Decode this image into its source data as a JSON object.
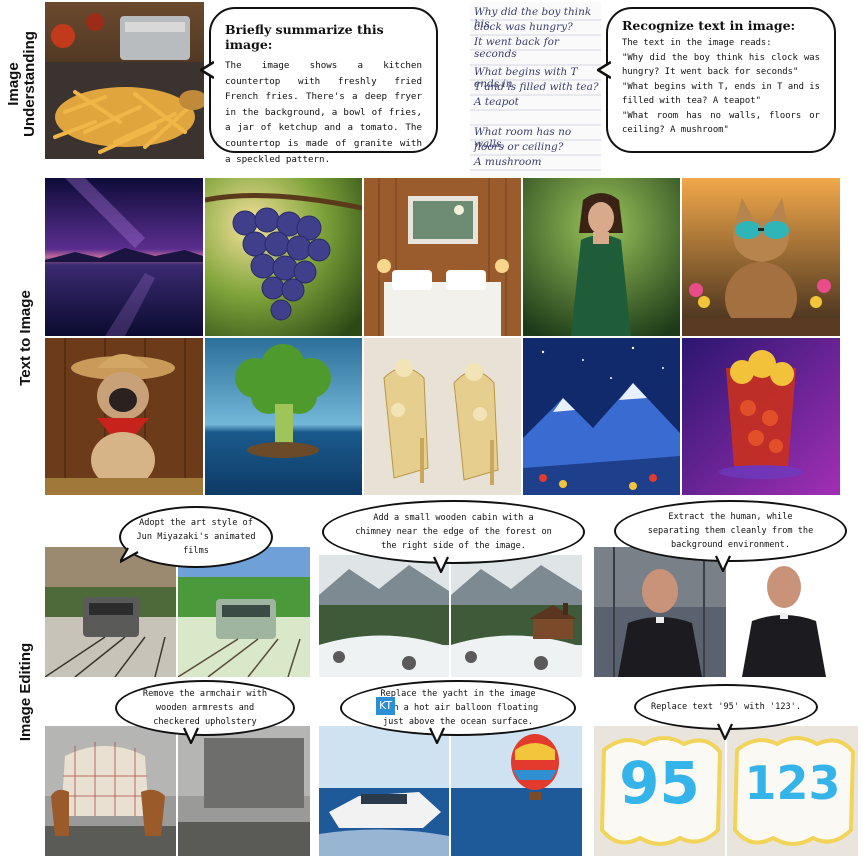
{
  "labels": {
    "understanding_line1": "Image",
    "understanding_line2": "Understanding",
    "text_to_image": "Text to Image",
    "image_editing": "Image Editing"
  },
  "understanding": {
    "summary_title": "Briefly summarize this image:",
    "summary_text": "The image shows a kitchen countertop with freshly fried French fries. There's a deep fryer in the background, a bowl of fries, a jar of ketchup and a tomato. The countertop is made of granite with a speckled pattern.",
    "ocr_title": "Recognize text in image:",
    "ocr_text": "The text in the image reads:\n\"Why did the boy think his clock was hungry? It went back for seconds\"\n\"What begins with T, ends in T and is filled with tea? A teapot\"\n\"What room has no walls, floors or ceiling? A mushroom\"",
    "handwriting": [
      "Why did the boy think his",
      "clock was hungry?",
      "It went back for seconds",
      "What begins with T ends in",
      "T and is filled with tea?",
      "A teapot",
      "What room has no walls,",
      "floors or ceiling?",
      "A mushroom"
    ]
  },
  "editing": {
    "prompt_1": "Adopt the art style of Jun Miyazaki's animated films",
    "prompt_2": "Add a small wooden cabin with a chimney near the edge of the forest on the right side of the image.",
    "prompt_3": "Extract the human, while separating them cleanly from the background environment.",
    "prompt_4": "Remove the armchair with wooden armrests and checkered upholstery",
    "prompt_5_badge": "KT",
    "prompt_5": "Replace the yacht in the image with a hot air balloon floating just above the ocean surface.",
    "prompt_6": "Replace text '95' with '123'.",
    "cookie_before": "95",
    "cookie_after": "123"
  },
  "colors": {
    "bubble_border": "#111111",
    "badge": "#2b8fd6",
    "cookie_text": "#34b4e8"
  }
}
